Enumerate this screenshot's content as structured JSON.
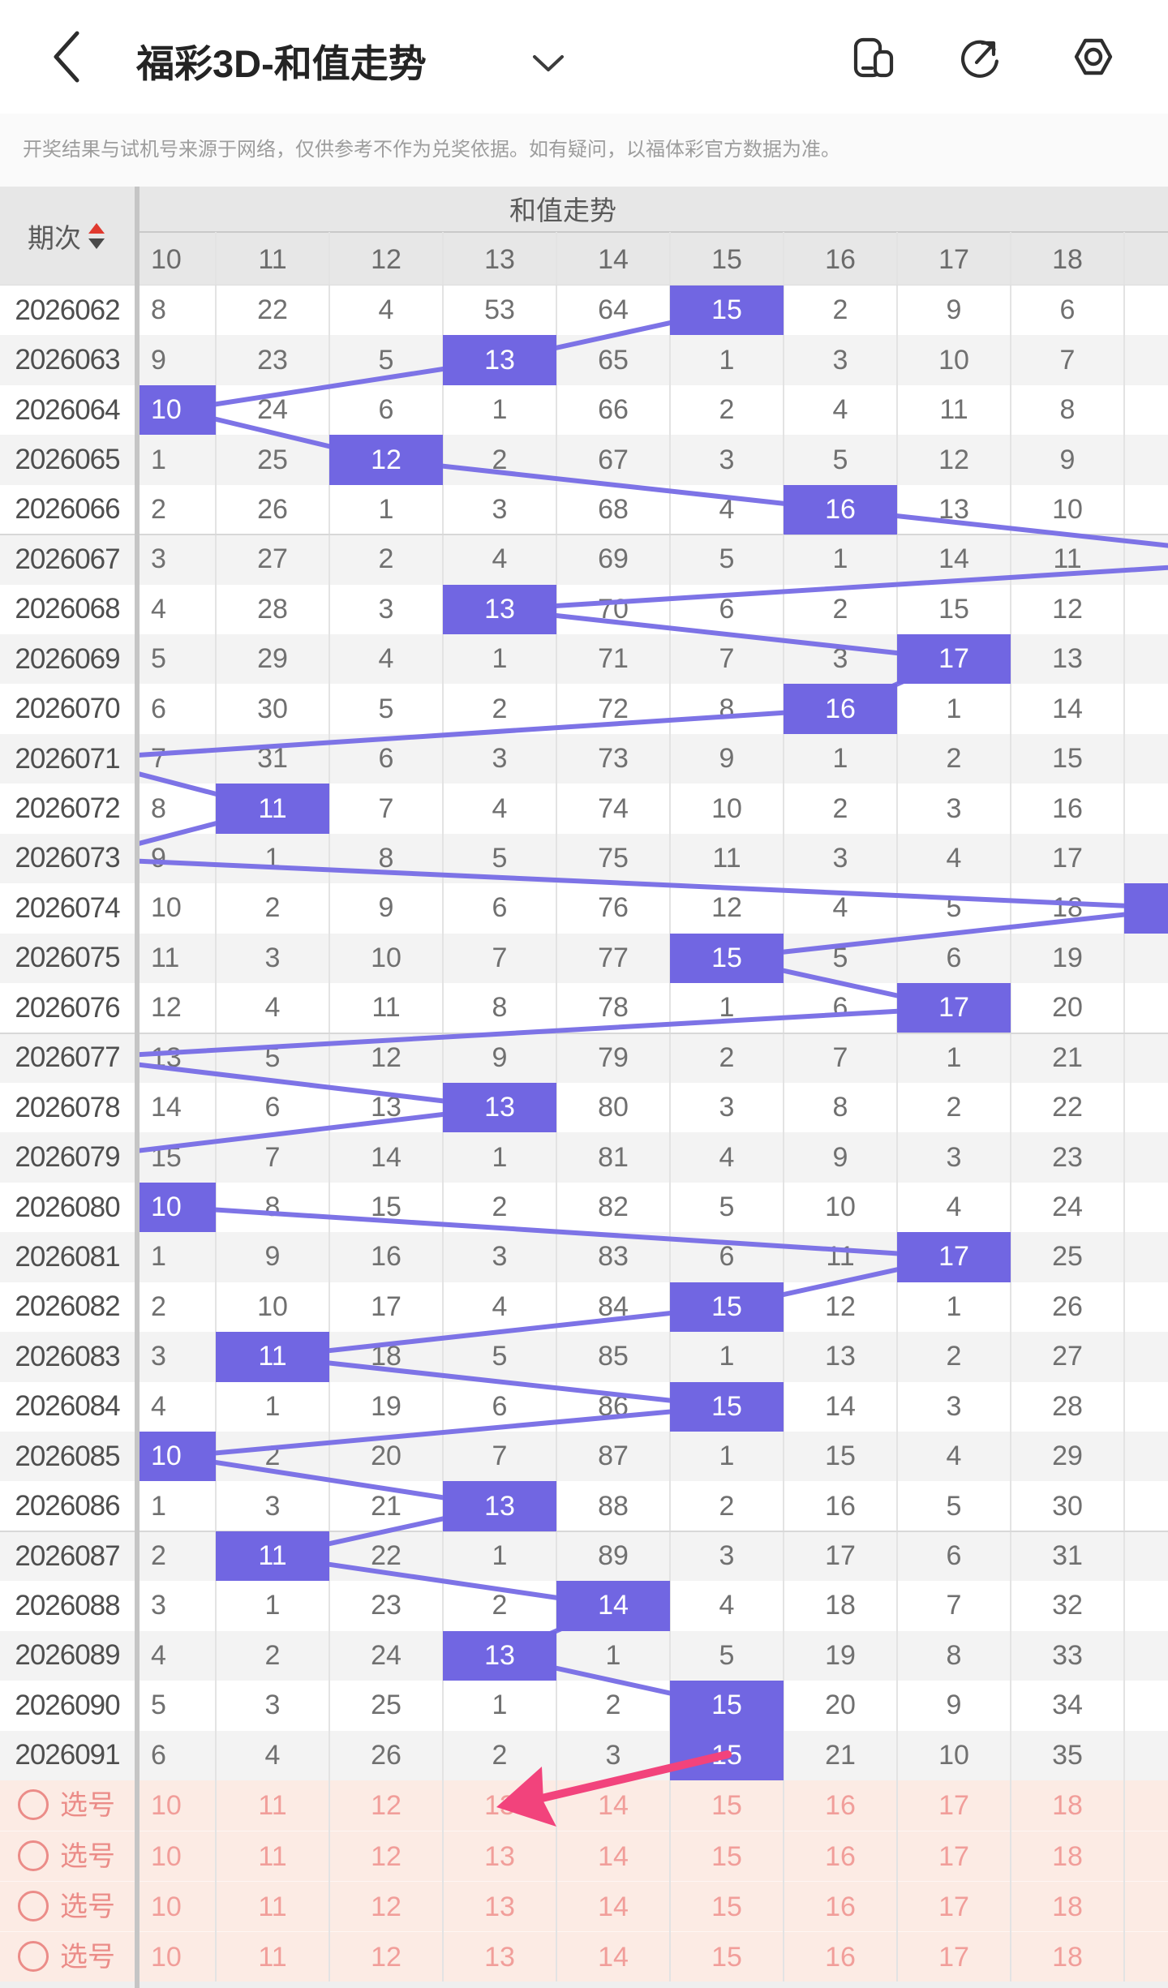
{
  "header": {
    "title": "福彩3D-和值走势",
    "back_icon": "chevron-left",
    "title_dropdown_icon": "chevron-down",
    "action_icons": [
      "window-switch",
      "share",
      "settings"
    ]
  },
  "disclaimer": "开奖结果与试机号来源于网络，仅供参考不作为兑奖依据。如有疑问，以福体彩官方数据为准。",
  "table": {
    "period_label": "期次",
    "sort_icon": "sort-up-down",
    "trend_label": "和值走势",
    "columns": [
      "10",
      "11",
      "12",
      "13",
      "14",
      "15",
      "16",
      "17",
      "18"
    ],
    "partial_right_column": true,
    "rows": [
      {
        "period": "2026062",
        "cells": [
          "8",
          "22",
          "4",
          "53",
          "64",
          "15",
          "2",
          "9",
          "6"
        ],
        "hit": "15"
      },
      {
        "period": "2026063",
        "cells": [
          "9",
          "23",
          "5",
          "13",
          "65",
          "1",
          "3",
          "10",
          "7"
        ],
        "hit": "13"
      },
      {
        "period": "2026064",
        "cells": [
          "10",
          "24",
          "6",
          "1",
          "66",
          "2",
          "4",
          "11",
          "8"
        ],
        "hit": "10"
      },
      {
        "period": "2026065",
        "cells": [
          "1",
          "25",
          "12",
          "2",
          "67",
          "3",
          "5",
          "12",
          "9"
        ],
        "hit": "12"
      },
      {
        "period": "2026066",
        "cells": [
          "2",
          "26",
          "1",
          "3",
          "68",
          "4",
          "16",
          "13",
          "10"
        ],
        "hit": "16"
      },
      {
        "period": "2026067",
        "cells": [
          "3",
          "27",
          "2",
          "4",
          "69",
          "5",
          "1",
          "14",
          "11"
        ],
        "hit": "offscreen-right"
      },
      {
        "period": "2026068",
        "cells": [
          "4",
          "28",
          "3",
          "13",
          "70",
          "6",
          "2",
          "15",
          "12"
        ],
        "hit": "13"
      },
      {
        "period": "2026069",
        "cells": [
          "5",
          "29",
          "4",
          "1",
          "71",
          "7",
          "3",
          "17",
          "13"
        ],
        "hit": "17"
      },
      {
        "period": "2026070",
        "cells": [
          "6",
          "30",
          "5",
          "2",
          "72",
          "8",
          "16",
          "1",
          "14"
        ],
        "hit": "16"
      },
      {
        "period": "2026071",
        "cells": [
          "7",
          "31",
          "6",
          "3",
          "73",
          "9",
          "1",
          "2",
          "15"
        ],
        "hit": "offscreen-left"
      },
      {
        "period": "2026072",
        "cells": [
          "8",
          "11",
          "7",
          "4",
          "74",
          "10",
          "2",
          "3",
          "16"
        ],
        "hit": "11"
      },
      {
        "period": "2026073",
        "cells": [
          "9",
          "1",
          "8",
          "5",
          "75",
          "11",
          "3",
          "4",
          "17"
        ],
        "hit": "offscreen-left"
      },
      {
        "period": "2026074",
        "cells": [
          "10",
          "2",
          "9",
          "6",
          "76",
          "12",
          "4",
          "5",
          "18"
        ],
        "hit": "19-partial"
      },
      {
        "period": "2026075",
        "cells": [
          "11",
          "3",
          "10",
          "7",
          "77",
          "15",
          "5",
          "6",
          "19"
        ],
        "hit": "15"
      },
      {
        "period": "2026076",
        "cells": [
          "12",
          "4",
          "11",
          "8",
          "78",
          "1",
          "6",
          "17",
          "20"
        ],
        "hit": "17"
      },
      {
        "period": "2026077",
        "cells": [
          "13",
          "5",
          "12",
          "9",
          "79",
          "2",
          "7",
          "1",
          "21"
        ],
        "hit": "offscreen-left"
      },
      {
        "period": "2026078",
        "cells": [
          "14",
          "6",
          "13",
          "13",
          "80",
          "3",
          "8",
          "2",
          "22"
        ],
        "hit": "13"
      },
      {
        "period": "2026079",
        "cells": [
          "15",
          "7",
          "14",
          "1",
          "81",
          "4",
          "9",
          "3",
          "23"
        ],
        "hit": "offscreen-left"
      },
      {
        "period": "2026080",
        "cells": [
          "10",
          "8",
          "15",
          "2",
          "82",
          "5",
          "10",
          "4",
          "24"
        ],
        "hit": "10"
      },
      {
        "period": "2026081",
        "cells": [
          "1",
          "9",
          "16",
          "3",
          "83",
          "6",
          "11",
          "17",
          "25"
        ],
        "hit": "17"
      },
      {
        "period": "2026082",
        "cells": [
          "2",
          "10",
          "17",
          "4",
          "84",
          "15",
          "12",
          "1",
          "26"
        ],
        "hit": "15"
      },
      {
        "period": "2026083",
        "cells": [
          "3",
          "11",
          "18",
          "5",
          "85",
          "1",
          "13",
          "2",
          "27"
        ],
        "hit": "11"
      },
      {
        "period": "2026084",
        "cells": [
          "4",
          "1",
          "19",
          "6",
          "86",
          "15",
          "14",
          "3",
          "28"
        ],
        "hit": "15"
      },
      {
        "period": "2026085",
        "cells": [
          "10",
          "2",
          "20",
          "7",
          "87",
          "1",
          "15",
          "4",
          "29"
        ],
        "hit": "10"
      },
      {
        "period": "2026086",
        "cells": [
          "1",
          "3",
          "21",
          "13",
          "88",
          "2",
          "16",
          "5",
          "30"
        ],
        "hit": "13"
      },
      {
        "period": "2026087",
        "cells": [
          "2",
          "11",
          "22",
          "1",
          "89",
          "3",
          "17",
          "6",
          "31"
        ],
        "hit": "11"
      },
      {
        "period": "2026088",
        "cells": [
          "3",
          "1",
          "23",
          "2",
          "14",
          "4",
          "18",
          "7",
          "32"
        ],
        "hit": "14"
      },
      {
        "period": "2026089",
        "cells": [
          "4",
          "2",
          "24",
          "13",
          "1",
          "5",
          "19",
          "8",
          "33"
        ],
        "hit": "13"
      },
      {
        "period": "2026090",
        "cells": [
          "5",
          "3",
          "25",
          "1",
          "2",
          "15",
          "20",
          "9",
          "34"
        ],
        "hit": "15"
      },
      {
        "period": "2026091",
        "cells": [
          "6",
          "4",
          "26",
          "2",
          "3",
          "15",
          "21",
          "10",
          "35"
        ],
        "hit": "15"
      }
    ],
    "picks": [
      {
        "label": "选号",
        "values": [
          "10",
          "11",
          "12",
          "13",
          "14",
          "15",
          "16",
          "17",
          "18"
        ]
      },
      {
        "label": "选号",
        "values": [
          "10",
          "11",
          "12",
          "13",
          "14",
          "15",
          "16",
          "17",
          "18"
        ]
      },
      {
        "label": "选号",
        "values": [
          "10",
          "11",
          "12",
          "13",
          "14",
          "15",
          "16",
          "17",
          "18"
        ]
      },
      {
        "label": "选号",
        "values": [
          "10",
          "11",
          "12",
          "13",
          "14",
          "15",
          "16",
          "17",
          "18"
        ]
      }
    ]
  },
  "colors": {
    "hit_purple": "#7166e2",
    "trend_line": "#7d73e6",
    "pick_bg": "#fcebe4",
    "pick_text": "#f19e9a",
    "pick_label": "#eb8c88",
    "annotation_arrow": "#f2437c",
    "sort_up_red": "#e0392e",
    "sort_down_gray": "#4a4a4a"
  }
}
